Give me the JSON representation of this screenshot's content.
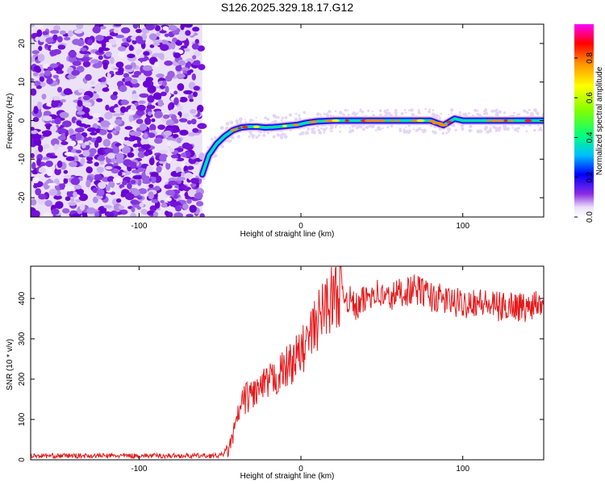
{
  "chart_data": [
    {
      "type": "heatmap",
      "title": "S126.2025.329.18.17.G12",
      "xlabel": "Height of straight line (km)",
      "ylabel": "Frequency (Hz)",
      "xlim": [
        -167,
        150
      ],
      "ylim": [
        -25,
        25
      ],
      "xticks": [
        -100,
        0,
        100
      ],
      "yticks": [
        -20,
        -10,
        0,
        10,
        20
      ],
      "noise_region_x": [
        -167,
        -61
      ],
      "ridge": {
        "x": [
          -61,
          -57,
          -52,
          -47,
          -42,
          -37,
          -32,
          -27,
          -22,
          -17,
          -12,
          -7,
          -2,
          3,
          10,
          20,
          40,
          60,
          80,
          88,
          95,
          100,
          120,
          150
        ],
        "freq": [
          -14,
          -9,
          -6,
          -4,
          -2.5,
          -1.8,
          -1.6,
          -1.6,
          -1.8,
          -1.7,
          -1.5,
          -1.3,
          -1.1,
          -0.6,
          -0.2,
          0,
          0,
          0,
          0,
          -1.2,
          0.5,
          0,
          0,
          0
        ]
      },
      "colorbar": {
        "label": "Normalized spectral amplitude",
        "ticks": [
          "0.0",
          "0.2",
          "0.4",
          "0.6",
          "0.8"
        ],
        "range": [
          0,
          0.97
        ]
      }
    },
    {
      "type": "line",
      "xlabel": "Height of straight line (km)",
      "ylabel": "SNR (10 * v/v)",
      "xlim": [
        -167,
        150
      ],
      "ylim": [
        0,
        480
      ],
      "xticks": [
        -100,
        0,
        100
      ],
      "yticks": [
        0,
        100,
        200,
        300,
        400
      ],
      "series": [
        {
          "name": "SNR",
          "color": "#e41a1c",
          "x": [
            -167,
            -120,
            -80,
            -50,
            -45,
            -42,
            -38,
            -35,
            -30,
            -25,
            -20,
            -15,
            -10,
            -5,
            0,
            5,
            10,
            15,
            20,
            25,
            30,
            35,
            40,
            45,
            50,
            55,
            60,
            65,
            70,
            75,
            80,
            85,
            90,
            95,
            100,
            105,
            110,
            115,
            120,
            125,
            130,
            135,
            140,
            145,
            150
          ],
          "values": [
            10,
            10,
            10,
            10,
            22,
            60,
            120,
            150,
            165,
            175,
            190,
            205,
            225,
            245,
            265,
            300,
            340,
            385,
            405,
            420,
            395,
            375,
            400,
            420,
            405,
            400,
            415,
            418,
            422,
            418,
            405,
            400,
            395,
            390,
            385,
            395,
            390,
            385,
            380,
            378,
            385,
            380,
            375,
            395,
            390
          ]
        }
      ]
    }
  ]
}
